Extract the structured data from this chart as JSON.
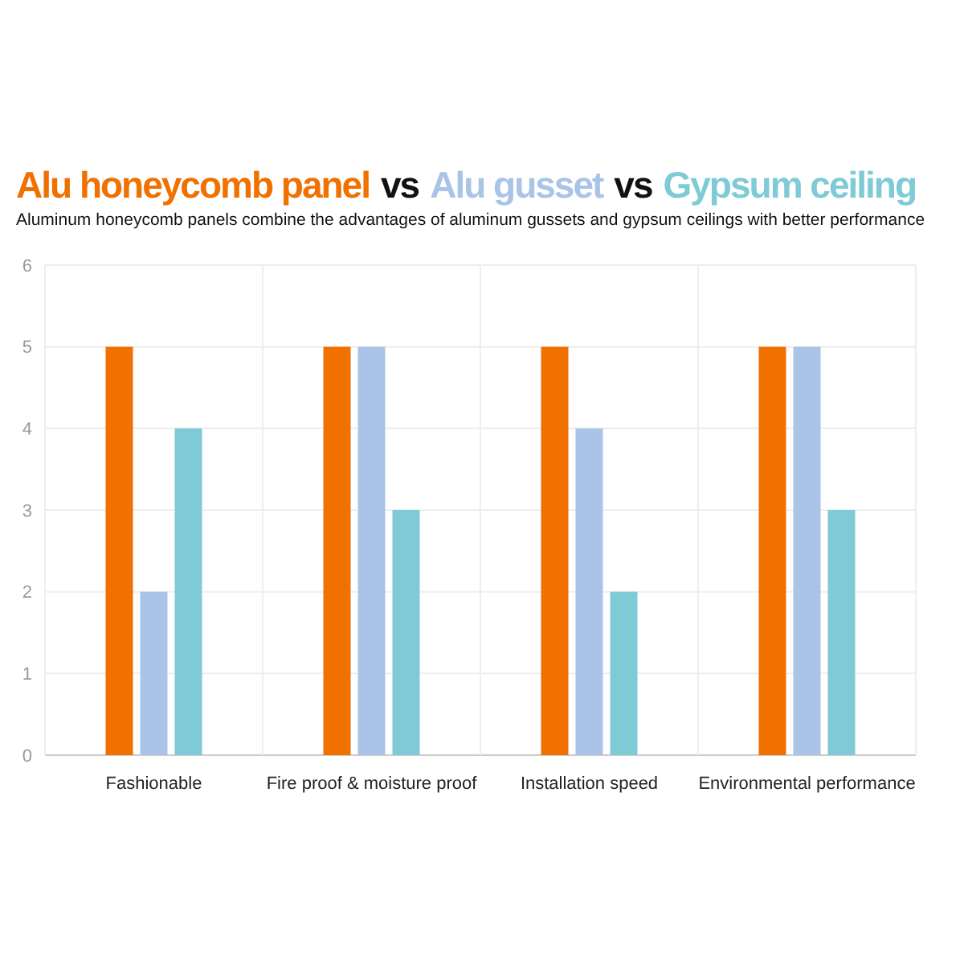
{
  "chart_data": {
    "type": "bar",
    "annotations": [
      "vs",
      "vs"
    ],
    "legend": "top left",
    "subtitle": "Aluminum honeycomb panels combine the advantages of aluminum gussets and gypsum ceilings with better performance",
    "categories": [
      "Fashionable",
      "Fire proof & moisture proof",
      "Installation speed",
      "Environmental performance"
    ],
    "series": [
      {
        "name": "Alu honeycomb panel",
        "color": "#f07000",
        "values": [
          5,
          5,
          5,
          5
        ]
      },
      {
        "name": "Alu gusset",
        "color": "#a9c4e6",
        "values": [
          2,
          5,
          4,
          5
        ]
      },
      {
        "name": "Gypsum ceiling",
        "color": "#7ecad6",
        "values": [
          4,
          3,
          2,
          3
        ]
      }
    ],
    "ylim": [
      0,
      6
    ],
    "yticks": [
      0,
      1,
      2,
      3,
      4,
      5,
      6
    ],
    "grid": true
  }
}
